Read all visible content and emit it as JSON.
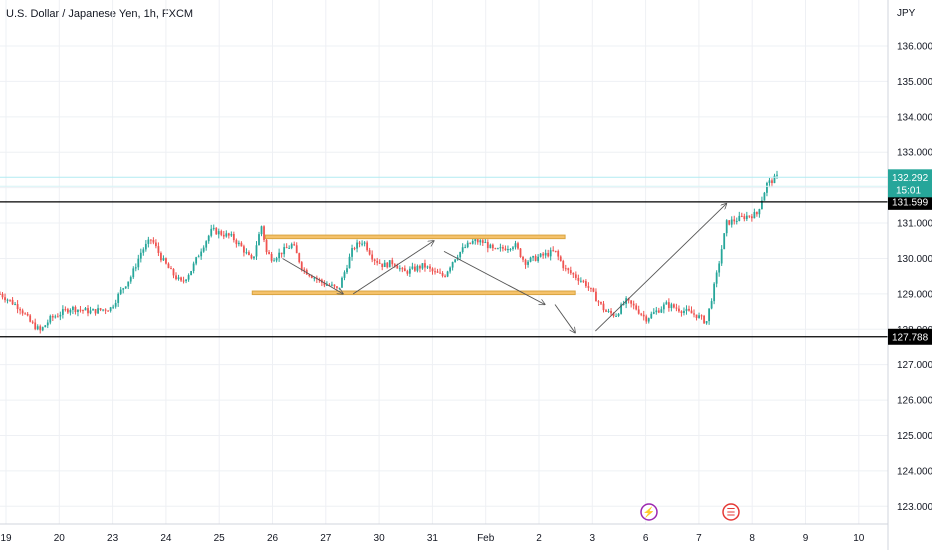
{
  "chart_data": {
    "type": "candlestick",
    "title": "U.S. Dollar / Japanese Yen, 1h, FXCM",
    "y_unit": "JPY",
    "ylim": [
      122.5,
      137.3
    ],
    "y_ticks": [
      "136.000",
      "135.000",
      "134.000",
      "133.000",
      "132.000",
      "131.000",
      "130.000",
      "129.000",
      "128.000",
      "127.000",
      "126.000",
      "125.000",
      "124.000",
      "123.000"
    ],
    "x_ticks": [
      "19",
      "20",
      "23",
      "24",
      "25",
      "26",
      "27",
      "30",
      "31",
      "Feb",
      "2",
      "3",
      "6",
      "7",
      "8",
      "9",
      "10"
    ],
    "grid": true,
    "price_path": [
      [
        0,
        129.0
      ],
      [
        2,
        128.6
      ],
      [
        3,
        128.2
      ],
      [
        4,
        127.95
      ],
      [
        5,
        128.3
      ],
      [
        7,
        128.6
      ],
      [
        9,
        128.5
      ],
      [
        11,
        128.6
      ],
      [
        12,
        129.1
      ],
      [
        13,
        129.5
      ],
      [
        14,
        130.2
      ],
      [
        15,
        130.55
      ],
      [
        16,
        130.0
      ],
      [
        17,
        129.6
      ],
      [
        18,
        129.3
      ],
      [
        19,
        129.7
      ],
      [
        20,
        130.3
      ],
      [
        21,
        130.8
      ],
      [
        22,
        130.7
      ],
      [
        23,
        130.6
      ],
      [
        24,
        130.3
      ],
      [
        25,
        129.9
      ],
      [
        25.5,
        130.5
      ],
      [
        26,
        131.0
      ],
      [
        26.3,
        130.2
      ],
      [
        27,
        130.0
      ],
      [
        28,
        130.2
      ],
      [
        29,
        130.4
      ],
      [
        30,
        129.7
      ],
      [
        31,
        129.5
      ],
      [
        32,
        129.3
      ],
      [
        33,
        129.2
      ],
      [
        33.5,
        129.1
      ],
      [
        34,
        129.5
      ],
      [
        35,
        130.3
      ],
      [
        36,
        130.5
      ],
      [
        37,
        130.0
      ],
      [
        38,
        129.8
      ],
      [
        39,
        129.9
      ],
      [
        40,
        129.6
      ],
      [
        41,
        129.7
      ],
      [
        42,
        129.8
      ],
      [
        43,
        129.6
      ],
      [
        44,
        129.5
      ],
      [
        45,
        130.0
      ],
      [
        46,
        130.3
      ],
      [
        47,
        130.5
      ],
      [
        48,
        130.45
      ],
      [
        49,
        130.2
      ],
      [
        50,
        130.3
      ],
      [
        51,
        130.4
      ],
      [
        52,
        129.9
      ],
      [
        53,
        130.0
      ],
      [
        54,
        130.1
      ],
      [
        55,
        130.2
      ],
      [
        56,
        129.7
      ],
      [
        57,
        129.5
      ],
      [
        58,
        129.3
      ],
      [
        59,
        128.9
      ],
      [
        60,
        128.5
      ],
      [
        61,
        128.4
      ],
      [
        62,
        128.8
      ],
      [
        63,
        128.6
      ],
      [
        64,
        128.3
      ],
      [
        65,
        128.5
      ],
      [
        66,
        128.7
      ],
      [
        67,
        128.6
      ],
      [
        68,
        128.5
      ],
      [
        69,
        128.4
      ],
      [
        70,
        128.2
      ],
      [
        71,
        129.5
      ],
      [
        72,
        131.0
      ],
      [
        73,
        131.1
      ],
      [
        74,
        131.2
      ],
      [
        75,
        131.25
      ],
      [
        76,
        132.1
      ],
      [
        77,
        132.3
      ]
    ],
    "last_price": "132.292",
    "countdown": "15:01",
    "levels": [
      {
        "label": "131.599",
        "value": 131.599
      },
      {
        "label": "127.788",
        "value": 127.788
      }
    ],
    "zones": [
      {
        "value_top": 130.66,
        "value_bottom": 130.56,
        "x_from": 26.3,
        "x_to": 56
      },
      {
        "value_top": 129.08,
        "value_bottom": 128.98,
        "x_from": 25,
        "x_to": 57
      }
    ],
    "arrows": [
      [
        [
          28,
          130.0
        ],
        [
          34,
          129.0
        ]
      ],
      [
        [
          35,
          129.0
        ],
        [
          43,
          130.5
        ]
      ],
      [
        [
          44,
          130.2
        ],
        [
          54,
          128.7
        ]
      ],
      [
        [
          55,
          128.7
        ],
        [
          57,
          127.9
        ]
      ],
      [
        [
          59,
          127.95
        ],
        [
          72,
          131.55
        ]
      ]
    ],
    "markers": [
      {
        "x": 12.0,
        "glyph": "⚡",
        "name": "event-marker-dividend"
      },
      {
        "x": 14.0,
        "glyph": "☰",
        "name": "event-marker-flag"
      }
    ],
    "colors": {
      "up": "#26a69a",
      "down": "#ef5350",
      "zone_fill": "#f5c26b",
      "zone_edge": "#d9a441",
      "grid": "#eef0f4",
      "axis_text": "#131722",
      "price_tag": "#26a69a",
      "level_tag": "#000000"
    }
  }
}
